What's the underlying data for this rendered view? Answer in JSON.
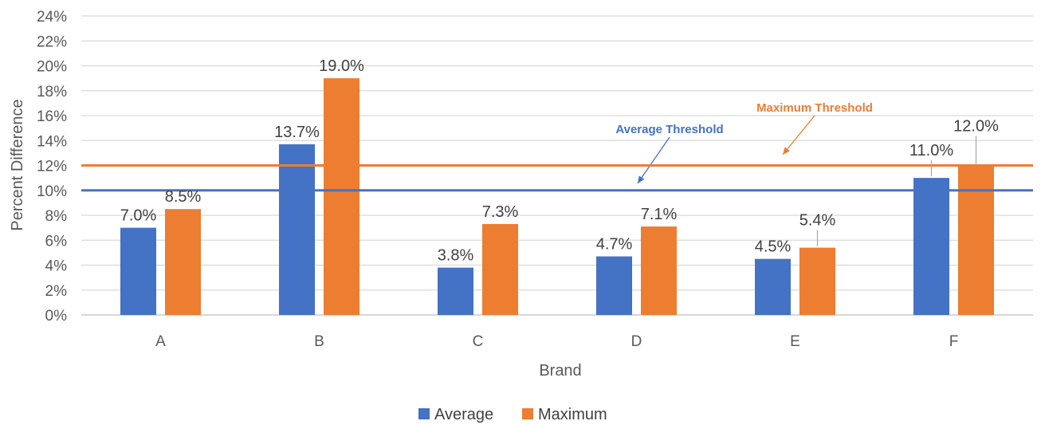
{
  "chart_data": {
    "type": "bar",
    "title": "",
    "xlabel": "Brand",
    "ylabel": "Percent Difference",
    "categories": [
      "A",
      "B",
      "C",
      "D",
      "E",
      "F"
    ],
    "ylim": [
      0,
      24
    ],
    "yticks": [
      "0%",
      "2%",
      "4%",
      "6%",
      "8%",
      "10%",
      "12%",
      "14%",
      "16%",
      "18%",
      "20%",
      "22%",
      "24%"
    ],
    "grid": true,
    "legend_position": "bottom",
    "series": [
      {
        "name": "Average",
        "color": "#4472c4",
        "values": [
          7.0,
          13.7,
          3.8,
          4.7,
          4.5,
          11.0
        ],
        "labels": [
          "7.0%",
          "13.7%",
          "3.8%",
          "4.7%",
          "4.5%",
          "11.0%"
        ]
      },
      {
        "name": "Maximum",
        "color": "#ed7d31",
        "values": [
          8.5,
          19.0,
          7.3,
          7.1,
          5.4,
          12.0
        ],
        "labels": [
          "8.5%",
          "19.0%",
          "7.3%",
          "7.1%",
          "5.4%",
          "12.0%"
        ]
      }
    ],
    "reference_lines": [
      {
        "name": "Average Threshold",
        "value": 10,
        "color": "#4472c4"
      },
      {
        "name": "Maximum Threshold",
        "value": 12,
        "color": "#ed7d31"
      }
    ]
  }
}
